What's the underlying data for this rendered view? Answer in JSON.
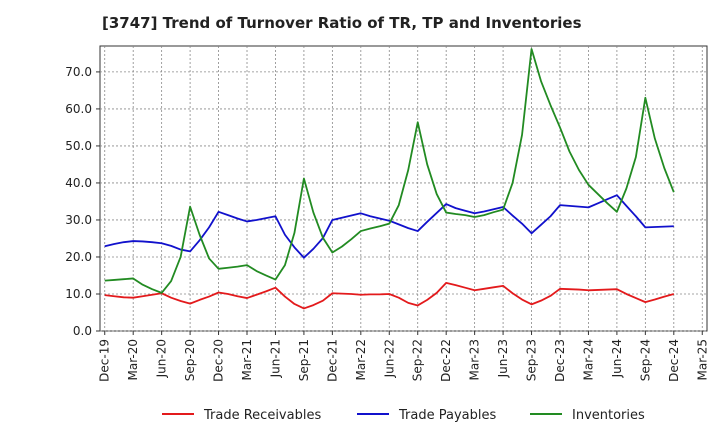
{
  "chart_data": {
    "type": "line",
    "title": "[3747]  Trend of Turnover Ratio of TR, TP and Inventories",
    "xlabel": "",
    "ylabel": "",
    "ylim": [
      0,
      77
    ],
    "y_ticks": [
      "0.0",
      "10.0",
      "20.0",
      "30.0",
      "40.0",
      "50.0",
      "60.0",
      "70.0"
    ],
    "y_tick_values": [
      0,
      10,
      20,
      30,
      40,
      50,
      60,
      70
    ],
    "x_ticks": [
      "Dec-19",
      "Mar-20",
      "Jun-20",
      "Sep-20",
      "Dec-20",
      "Mar-21",
      "Jun-21",
      "Sep-21",
      "Dec-21",
      "Mar-22",
      "Jun-22",
      "Sep-22",
      "Dec-22",
      "Mar-23",
      "Jun-23",
      "Sep-23",
      "Dec-23",
      "Mar-24",
      "Jun-24",
      "Sep-24",
      "Dec-24",
      "Mar-25"
    ],
    "x": [
      "Dec-19",
      "Jan-20",
      "Feb-20",
      "Mar-20",
      "Apr-20",
      "May-20",
      "Jun-20",
      "Jul-20",
      "Aug-20",
      "Sep-20",
      "Oct-20",
      "Nov-20",
      "Dec-20",
      "Jan-21",
      "Feb-21",
      "Mar-21",
      "Apr-21",
      "May-21",
      "Jun-21",
      "Jul-21",
      "Aug-21",
      "Sep-21",
      "Oct-21",
      "Nov-21",
      "Dec-21",
      "Jan-22",
      "Feb-22",
      "Mar-22",
      "Apr-22",
      "May-22",
      "Jun-22",
      "Jul-22",
      "Aug-22",
      "Sep-22",
      "Oct-22",
      "Nov-22",
      "Dec-22",
      "Jan-23",
      "Feb-23",
      "Mar-23",
      "Apr-23",
      "May-23",
      "Jun-23",
      "Jul-23",
      "Aug-23",
      "Sep-23",
      "Oct-23",
      "Nov-23",
      "Dec-23",
      "Jan-24",
      "Feb-24",
      "Mar-24",
      "Apr-24",
      "May-24",
      "Jun-24",
      "Jul-24",
      "Aug-24",
      "Sep-24",
      "Oct-24",
      "Nov-24",
      "Dec-24"
    ],
    "series": [
      {
        "name": "Trade Receivables",
        "color": "#e31a1c",
        "values": [
          9.7,
          9.4,
          9.1,
          9.0,
          9.4,
          9.8,
          10.2,
          9.0,
          8.1,
          7.4,
          8.4,
          9.3,
          10.4,
          10.0,
          9.4,
          8.9,
          9.8,
          10.7,
          11.7,
          9.3,
          7.3,
          6.1,
          7.0,
          8.2,
          10.2,
          10.1,
          10.0,
          9.8,
          9.9,
          9.9,
          10.0,
          9.0,
          7.6,
          6.9,
          8.4,
          10.3,
          13.0,
          12.4,
          11.7,
          11.0,
          11.4,
          11.8,
          12.2,
          10.2,
          8.5,
          7.2,
          8.2,
          9.5,
          11.4,
          11.3,
          11.2,
          11.0,
          11.1,
          11.2,
          11.3,
          10.0,
          8.9,
          7.8,
          8.5,
          9.3,
          10.0
        ]
      },
      {
        "name": "Trade Payables",
        "color": "#1111cc",
        "values": [
          22.9,
          23.5,
          24.0,
          24.3,
          24.2,
          24.0,
          23.7,
          23.0,
          22.0,
          21.5,
          24.5,
          28.0,
          32.2,
          31.3,
          30.4,
          29.6,
          30.0,
          30.5,
          31.0,
          26.0,
          22.6,
          19.8,
          22.2,
          25.1,
          30.0,
          30.6,
          31.2,
          31.8,
          31.0,
          30.4,
          29.8,
          28.8,
          27.8,
          27.0,
          29.5,
          31.9,
          34.3,
          33.2,
          32.5,
          31.8,
          32.3,
          32.9,
          33.5,
          31.2,
          29.0,
          26.4,
          28.7,
          31.0,
          34.0,
          33.8,
          33.6,
          33.4,
          34.5,
          35.6,
          36.7,
          33.8,
          31.0,
          28.0,
          28.1,
          28.2,
          28.3
        ]
      },
      {
        "name": "Inventories",
        "color": "#228b22",
        "values": [
          13.6,
          13.8,
          14.0,
          14.2,
          12.5,
          11.3,
          10.3,
          13.5,
          20.0,
          33.6,
          26.0,
          19.6,
          16.8,
          17.1,
          17.4,
          17.8,
          16.2,
          15.0,
          13.9,
          17.8,
          26.5,
          41.2,
          32.0,
          25.2,
          21.2,
          22.8,
          24.8,
          27.0,
          27.7,
          28.3,
          29.0,
          34.0,
          43.5,
          56.4,
          45.0,
          37.0,
          32.0,
          31.6,
          31.3,
          30.8,
          31.3,
          32.1,
          32.8,
          40.0,
          53.0,
          76.2,
          67.5,
          61.0,
          55.0,
          48.5,
          43.5,
          39.5,
          37.0,
          34.5,
          32.2,
          38.5,
          47.0,
          63.0,
          52.0,
          44.0,
          37.5
        ]
      }
    ],
    "grid": true,
    "legend": "bottom"
  }
}
